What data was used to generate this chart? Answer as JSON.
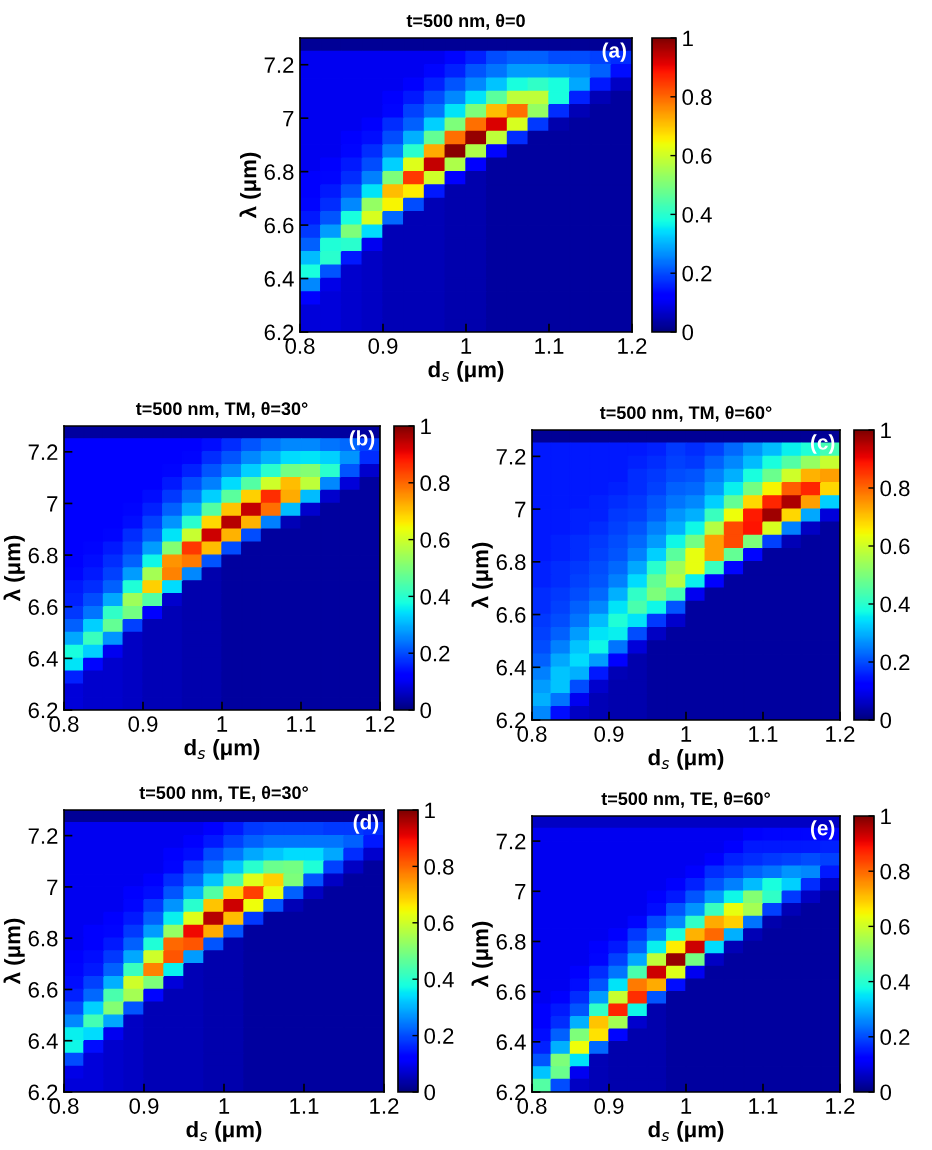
{
  "chart_data": [
    {
      "type": "heatmap",
      "title": "t=500 nm, θ=0",
      "xlabel": "d$_{s}$ (μm)",
      "ylabel": "λ (μm)",
      "annotations": [
        "(a)"
      ],
      "xlim": [
        0.8,
        1.2
      ],
      "ylim": [
        6.2,
        7.3
      ],
      "xticks": [
        0.8,
        0.9,
        1,
        1.1,
        1.2
      ],
      "yticks": [
        6.2,
        6.4,
        6.6,
        6.8,
        7,
        7.2
      ],
      "clim": [
        0,
        1
      ],
      "cticks": [
        0,
        0.2,
        0.4,
        0.6,
        0.8,
        1
      ],
      "cells": [
        [
          0.02,
          0.02,
          0.02,
          0.02,
          0.02,
          0.02,
          0.02,
          0.02,
          0.02,
          0.02,
          0.02,
          0.02,
          0.02,
          0.02,
          0.02,
          0.02
        ],
        [
          0.1,
          0.1,
          0.1,
          0.1,
          0.1,
          0.1,
          0.1,
          0.13,
          0.16,
          0.2,
          0.22,
          0.22,
          0.2,
          0.2,
          0.19,
          0.17
        ],
        [
          0.1,
          0.1,
          0.1,
          0.1,
          0.1,
          0.1,
          0.13,
          0.16,
          0.21,
          0.24,
          0.28,
          0.28,
          0.27,
          0.26,
          0.22,
          0.14
        ],
        [
          0.1,
          0.1,
          0.1,
          0.1,
          0.1,
          0.12,
          0.16,
          0.21,
          0.26,
          0.32,
          0.38,
          0.41,
          0.38,
          0.29,
          0.15,
          0.06
        ],
        [
          0.1,
          0.1,
          0.1,
          0.1,
          0.11,
          0.15,
          0.2,
          0.26,
          0.35,
          0.46,
          0.58,
          0.58,
          0.38,
          0.16,
          0.05,
          0.03
        ],
        [
          0.1,
          0.1,
          0.1,
          0.1,
          0.13,
          0.19,
          0.24,
          0.35,
          0.5,
          0.71,
          0.79,
          0.53,
          0.17,
          0.05,
          0.03,
          0.03
        ],
        [
          0.1,
          0.1,
          0.1,
          0.12,
          0.17,
          0.22,
          0.33,
          0.5,
          0.79,
          0.92,
          0.61,
          0.18,
          0.04,
          0.03,
          0.03,
          0.03
        ],
        [
          0.1,
          0.1,
          0.11,
          0.14,
          0.2,
          0.3,
          0.47,
          0.79,
          0.98,
          0.58,
          0.17,
          0.03,
          0.03,
          0.03,
          0.03,
          0.03
        ],
        [
          0.1,
          0.1,
          0.13,
          0.17,
          0.25,
          0.4,
          0.73,
          0.99,
          0.56,
          0.13,
          0.03,
          0.03,
          0.03,
          0.03,
          0.03,
          0.03
        ],
        [
          0.1,
          0.11,
          0.15,
          0.2,
          0.33,
          0.62,
          0.94,
          0.56,
          0.12,
          0.03,
          0.03,
          0.03,
          0.03,
          0.03,
          0.03,
          0.03
        ],
        [
          0.11,
          0.13,
          0.17,
          0.25,
          0.5,
          0.85,
          0.6,
          0.12,
          0.04,
          0.03,
          0.03,
          0.03,
          0.03,
          0.03,
          0.03,
          0.03
        ],
        [
          0.12,
          0.15,
          0.21,
          0.35,
          0.71,
          0.66,
          0.15,
          0.04,
          0.04,
          0.03,
          0.03,
          0.03,
          0.03,
          0.03,
          0.03,
          0.03
        ],
        [
          0.13,
          0.17,
          0.26,
          0.53,
          0.65,
          0.2,
          0.05,
          0.04,
          0.04,
          0.03,
          0.03,
          0.03,
          0.03,
          0.03,
          0.03,
          0.03
        ],
        [
          0.15,
          0.21,
          0.38,
          0.61,
          0.23,
          0.05,
          0.05,
          0.04,
          0.04,
          0.03,
          0.03,
          0.03,
          0.03,
          0.03,
          0.03,
          0.03
        ],
        [
          0.18,
          0.28,
          0.5,
          0.34,
          0.05,
          0.05,
          0.05,
          0.04,
          0.04,
          0.03,
          0.03,
          0.03,
          0.03,
          0.03,
          0.03,
          0.03
        ],
        [
          0.22,
          0.39,
          0.4,
          0.1,
          0.05,
          0.05,
          0.05,
          0.04,
          0.04,
          0.03,
          0.03,
          0.03,
          0.03,
          0.03,
          0.03,
          0.03
        ],
        [
          0.31,
          0.4,
          0.15,
          0.06,
          0.05,
          0.05,
          0.05,
          0.04,
          0.04,
          0.03,
          0.03,
          0.03,
          0.03,
          0.03,
          0.03,
          0.03
        ],
        [
          0.38,
          0.21,
          0.07,
          0.06,
          0.05,
          0.05,
          0.05,
          0.04,
          0.04,
          0.03,
          0.03,
          0.03,
          0.03,
          0.03,
          0.03,
          0.03
        ],
        [
          0.26,
          0.09,
          0.07,
          0.06,
          0.05,
          0.05,
          0.05,
          0.04,
          0.04,
          0.03,
          0.03,
          0.03,
          0.03,
          0.03,
          0.03,
          0.03
        ],
        [
          0.11,
          0.08,
          0.07,
          0.06,
          0.05,
          0.05,
          0.05,
          0.04,
          0.04,
          0.03,
          0.03,
          0.03,
          0.03,
          0.03,
          0.03,
          0.03
        ],
        [
          0.08,
          0.08,
          0.07,
          0.06,
          0.05,
          0.05,
          0.05,
          0.04,
          0.04,
          0.03,
          0.03,
          0.03,
          0.03,
          0.03,
          0.03,
          0.03
        ],
        [
          0.08,
          0.08,
          0.07,
          0.06,
          0.05,
          0.05,
          0.05,
          0.04,
          0.04,
          0.03,
          0.03,
          0.03,
          0.03,
          0.03,
          0.03,
          0.03
        ]
      ]
    },
    {
      "type": "heatmap",
      "title": "t=500 nm, TM, θ=30°",
      "xlabel": "d$_{s}$ (μm)",
      "ylabel": "λ (μm)",
      "annotations": [
        "(b)"
      ],
      "xlim": [
        0.8,
        1.2
      ],
      "ylim": [
        6.2,
        7.3
      ],
      "xticks": [
        0.8,
        0.9,
        1,
        1.1,
        1.2
      ],
      "yticks": [
        6.2,
        6.4,
        6.6,
        6.8,
        7,
        7.2
      ],
      "clim": [
        0,
        1
      ],
      "cticks": [
        0,
        0.2,
        0.4,
        0.6,
        0.8,
        1
      ],
      "cells": [
        [
          0.03,
          0.03,
          0.03,
          0.03,
          0.03,
          0.03,
          0.03,
          0.03,
          0.03,
          0.03,
          0.03,
          0.03,
          0.03,
          0.03,
          0.03,
          0.03
        ],
        [
          0.12,
          0.12,
          0.12,
          0.12,
          0.12,
          0.12,
          0.12,
          0.14,
          0.17,
          0.21,
          0.24,
          0.26,
          0.26,
          0.24,
          0.23,
          0.19
        ],
        [
          0.12,
          0.12,
          0.12,
          0.12,
          0.12,
          0.12,
          0.13,
          0.17,
          0.21,
          0.26,
          0.3,
          0.34,
          0.35,
          0.33,
          0.27,
          0.17
        ],
        [
          0.12,
          0.12,
          0.12,
          0.12,
          0.12,
          0.13,
          0.16,
          0.21,
          0.26,
          0.33,
          0.4,
          0.49,
          0.51,
          0.4,
          0.21,
          0.07
        ],
        [
          0.12,
          0.12,
          0.12,
          0.12,
          0.12,
          0.15,
          0.2,
          0.25,
          0.34,
          0.45,
          0.6,
          0.71,
          0.58,
          0.26,
          0.08,
          0.03
        ],
        [
          0.12,
          0.12,
          0.12,
          0.12,
          0.14,
          0.18,
          0.24,
          0.33,
          0.46,
          0.69,
          0.86,
          0.73,
          0.31,
          0.07,
          0.03,
          0.03
        ],
        [
          0.12,
          0.12,
          0.12,
          0.13,
          0.16,
          0.22,
          0.3,
          0.45,
          0.7,
          0.94,
          0.79,
          0.31,
          0.07,
          0.03,
          0.03,
          0.03
        ],
        [
          0.12,
          0.12,
          0.12,
          0.14,
          0.19,
          0.27,
          0.4,
          0.68,
          0.95,
          0.72,
          0.25,
          0.05,
          0.03,
          0.03,
          0.03,
          0.03
        ],
        [
          0.12,
          0.12,
          0.13,
          0.17,
          0.22,
          0.35,
          0.59,
          0.93,
          0.72,
          0.2,
          0.03,
          0.03,
          0.03,
          0.03,
          0.03,
          0.03
        ],
        [
          0.12,
          0.13,
          0.15,
          0.19,
          0.28,
          0.51,
          0.85,
          0.71,
          0.2,
          0.03,
          0.03,
          0.03,
          0.03,
          0.03,
          0.03,
          0.03
        ],
        [
          0.12,
          0.14,
          0.17,
          0.22,
          0.37,
          0.75,
          0.78,
          0.21,
          0.03,
          0.03,
          0.03,
          0.03,
          0.03,
          0.03,
          0.03,
          0.03
        ],
        [
          0.13,
          0.15,
          0.19,
          0.28,
          0.55,
          0.77,
          0.26,
          0.04,
          0.03,
          0.03,
          0.03,
          0.03,
          0.03,
          0.03,
          0.03,
          0.03
        ],
        [
          0.15,
          0.17,
          0.22,
          0.39,
          0.69,
          0.34,
          0.04,
          0.04,
          0.03,
          0.03,
          0.03,
          0.03,
          0.03,
          0.03,
          0.03,
          0.03
        ],
        [
          0.16,
          0.2,
          0.29,
          0.54,
          0.45,
          0.07,
          0.04,
          0.04,
          0.03,
          0.03,
          0.03,
          0.03,
          0.03,
          0.03,
          0.03,
          0.03
        ],
        [
          0.18,
          0.24,
          0.41,
          0.49,
          0.12,
          0.05,
          0.04,
          0.04,
          0.03,
          0.03,
          0.03,
          0.03,
          0.03,
          0.03,
          0.03,
          0.03
        ],
        [
          0.22,
          0.33,
          0.47,
          0.19,
          0.05,
          0.05,
          0.04,
          0.04,
          0.03,
          0.03,
          0.03,
          0.03,
          0.03,
          0.03,
          0.03,
          0.03
        ],
        [
          0.29,
          0.42,
          0.27,
          0.06,
          0.05,
          0.05,
          0.04,
          0.04,
          0.03,
          0.03,
          0.03,
          0.03,
          0.03,
          0.03,
          0.03,
          0.03
        ],
        [
          0.38,
          0.33,
          0.1,
          0.06,
          0.05,
          0.05,
          0.04,
          0.04,
          0.03,
          0.03,
          0.03,
          0.03,
          0.03,
          0.03,
          0.03,
          0.03
        ],
        [
          0.35,
          0.13,
          0.07,
          0.06,
          0.05,
          0.05,
          0.04,
          0.04,
          0.03,
          0.03,
          0.03,
          0.03,
          0.03,
          0.03,
          0.03,
          0.03
        ],
        [
          0.16,
          0.07,
          0.07,
          0.06,
          0.05,
          0.05,
          0.04,
          0.04,
          0.03,
          0.03,
          0.03,
          0.03,
          0.03,
          0.03,
          0.03,
          0.03
        ],
        [
          0.08,
          0.07,
          0.07,
          0.06,
          0.05,
          0.05,
          0.04,
          0.04,
          0.03,
          0.03,
          0.03,
          0.03,
          0.03,
          0.03,
          0.03,
          0.03
        ],
        [
          0.08,
          0.07,
          0.07,
          0.06,
          0.05,
          0.05,
          0.04,
          0.04,
          0.03,
          0.03,
          0.03,
          0.03,
          0.03,
          0.03,
          0.03,
          0.03
        ]
      ]
    },
    {
      "type": "heatmap",
      "title": "t=500 nm, TM, θ=60°",
      "xlabel": "d$_{s}$ (μm)",
      "ylabel": "λ (μm)",
      "annotations": [
        "(c)"
      ],
      "xlim": [
        0.8,
        1.2
      ],
      "ylim": [
        6.2,
        7.3
      ],
      "xticks": [
        0.8,
        0.9,
        1,
        1.1,
        1.2
      ],
      "yticks": [
        6.2,
        6.4,
        6.6,
        6.8,
        7,
        7.2
      ],
      "clim": [
        0,
        1
      ],
      "cticks": [
        0,
        0.2,
        0.4,
        0.6,
        0.8,
        1
      ],
      "cells": [
        [
          0.02,
          0.02,
          0.02,
          0.02,
          0.02,
          0.02,
          0.02,
          0.02,
          0.02,
          0.02,
          0.02,
          0.02,
          0.02,
          0.02,
          0.02,
          0.02
        ],
        [
          0.15,
          0.15,
          0.15,
          0.15,
          0.15,
          0.15,
          0.16,
          0.18,
          0.17,
          0.19,
          0.23,
          0.27,
          0.31,
          0.36,
          0.39,
          0.43
        ],
        [
          0.15,
          0.15,
          0.15,
          0.15,
          0.15,
          0.16,
          0.17,
          0.19,
          0.18,
          0.22,
          0.26,
          0.31,
          0.38,
          0.45,
          0.53,
          0.59
        ],
        [
          0.15,
          0.15,
          0.15,
          0.15,
          0.15,
          0.17,
          0.18,
          0.2,
          0.21,
          0.25,
          0.3,
          0.38,
          0.48,
          0.6,
          0.72,
          0.74
        ],
        [
          0.15,
          0.15,
          0.15,
          0.15,
          0.16,
          0.17,
          0.19,
          0.22,
          0.23,
          0.28,
          0.36,
          0.49,
          0.65,
          0.81,
          0.87,
          0.68
        ],
        [
          0.15,
          0.15,
          0.15,
          0.16,
          0.17,
          0.18,
          0.21,
          0.24,
          0.26,
          0.33,
          0.47,
          0.68,
          0.87,
          0.96,
          0.74,
          0.33
        ],
        [
          0.15,
          0.15,
          0.16,
          0.16,
          0.18,
          0.19,
          0.22,
          0.27,
          0.3,
          0.42,
          0.64,
          0.88,
          0.97,
          0.68,
          0.29,
          0.08
        ],
        [
          0.15,
          0.15,
          0.16,
          0.17,
          0.19,
          0.21,
          0.25,
          0.3,
          0.37,
          0.57,
          0.83,
          0.89,
          0.61,
          0.25,
          0.06,
          0.03
        ],
        [
          0.15,
          0.16,
          0.17,
          0.18,
          0.2,
          0.23,
          0.28,
          0.37,
          0.49,
          0.74,
          0.83,
          0.5,
          0.19,
          0.05,
          0.03,
          0.03
        ],
        [
          0.15,
          0.16,
          0.17,
          0.19,
          0.21,
          0.25,
          0.33,
          0.46,
          0.63,
          0.74,
          0.47,
          0.13,
          0.03,
          0.03,
          0.03,
          0.03
        ],
        [
          0.16,
          0.17,
          0.18,
          0.2,
          0.23,
          0.29,
          0.4,
          0.54,
          0.63,
          0.42,
          0.13,
          0.03,
          0.03,
          0.03,
          0.03,
          0.03
        ],
        [
          0.16,
          0.17,
          0.19,
          0.21,
          0.25,
          0.34,
          0.47,
          0.57,
          0.36,
          0.11,
          0.03,
          0.03,
          0.03,
          0.03,
          0.03,
          0.03
        ],
        [
          0.17,
          0.18,
          0.2,
          0.23,
          0.3,
          0.41,
          0.5,
          0.43,
          0.1,
          0.03,
          0.03,
          0.03,
          0.03,
          0.03,
          0.03,
          0.03
        ],
        [
          0.17,
          0.19,
          0.22,
          0.26,
          0.35,
          0.44,
          0.37,
          0.21,
          0.03,
          0.03,
          0.03,
          0.03,
          0.03,
          0.03,
          0.03,
          0.03
        ],
        [
          0.18,
          0.2,
          0.24,
          0.31,
          0.39,
          0.35,
          0.18,
          0.07,
          0.03,
          0.03,
          0.03,
          0.03,
          0.03,
          0.03,
          0.03,
          0.03
        ],
        [
          0.19,
          0.22,
          0.28,
          0.35,
          0.36,
          0.2,
          0.06,
          0.03,
          0.03,
          0.03,
          0.03,
          0.03,
          0.03,
          0.03,
          0.03,
          0.03
        ],
        [
          0.2,
          0.25,
          0.32,
          0.37,
          0.24,
          0.08,
          0.03,
          0.03,
          0.03,
          0.03,
          0.03,
          0.03,
          0.03,
          0.03,
          0.03,
          0.03
        ],
        [
          0.22,
          0.29,
          0.34,
          0.28,
          0.11,
          0.04,
          0.03,
          0.03,
          0.03,
          0.03,
          0.03,
          0.03,
          0.03,
          0.03,
          0.03,
          0.03
        ],
        [
          0.25,
          0.32,
          0.3,
          0.15,
          0.05,
          0.04,
          0.03,
          0.03,
          0.03,
          0.03,
          0.03,
          0.03,
          0.03,
          0.03,
          0.03,
          0.03
        ],
        [
          0.28,
          0.32,
          0.2,
          0.07,
          0.04,
          0.04,
          0.03,
          0.03,
          0.03,
          0.03,
          0.03,
          0.03,
          0.03,
          0.03,
          0.03,
          0.03
        ],
        [
          0.3,
          0.24,
          0.1,
          0.05,
          0.04,
          0.04,
          0.03,
          0.03,
          0.03,
          0.03,
          0.03,
          0.03,
          0.03,
          0.03,
          0.03,
          0.03
        ],
        [
          0.26,
          0.14,
          0.06,
          0.05,
          0.04,
          0.04,
          0.03,
          0.03,
          0.03,
          0.03,
          0.03,
          0.03,
          0.03,
          0.03,
          0.03,
          0.03
        ]
      ]
    },
    {
      "type": "heatmap",
      "title": "t=500 nm, TE, θ=30°",
      "xlabel": "d$_{s}$ (μm)",
      "ylabel": "λ (μm)",
      "annotations": [
        "(d)"
      ],
      "xlim": [
        0.8,
        1.2
      ],
      "ylim": [
        6.2,
        7.3
      ],
      "xticks": [
        0.8,
        0.9,
        1,
        1.1,
        1.2
      ],
      "yticks": [
        6.2,
        6.4,
        6.6,
        6.8,
        7,
        7.2
      ],
      "clim": [
        0,
        1
      ],
      "cticks": [
        0,
        0.2,
        0.4,
        0.6,
        0.8,
        1
      ],
      "cells": [
        [
          0.02,
          0.02,
          0.02,
          0.02,
          0.02,
          0.02,
          0.02,
          0.02,
          0.02,
          0.02,
          0.02,
          0.02,
          0.02,
          0.02,
          0.02,
          0.02
        ],
        [
          0.1,
          0.1,
          0.1,
          0.1,
          0.1,
          0.1,
          0.1,
          0.12,
          0.15,
          0.18,
          0.19,
          0.19,
          0.19,
          0.18,
          0.18,
          0.17
        ],
        [
          0.1,
          0.1,
          0.1,
          0.1,
          0.1,
          0.1,
          0.11,
          0.15,
          0.19,
          0.22,
          0.24,
          0.24,
          0.24,
          0.24,
          0.22,
          0.15
        ],
        [
          0.1,
          0.1,
          0.1,
          0.1,
          0.1,
          0.11,
          0.14,
          0.2,
          0.24,
          0.29,
          0.32,
          0.34,
          0.34,
          0.29,
          0.17,
          0.07
        ],
        [
          0.1,
          0.1,
          0.1,
          0.1,
          0.1,
          0.13,
          0.19,
          0.24,
          0.32,
          0.4,
          0.48,
          0.49,
          0.39,
          0.19,
          0.06,
          0.03
        ],
        [
          0.1,
          0.1,
          0.1,
          0.1,
          0.12,
          0.17,
          0.23,
          0.32,
          0.44,
          0.62,
          0.69,
          0.5,
          0.21,
          0.06,
          0.03,
          0.03
        ],
        [
          0.1,
          0.1,
          0.1,
          0.11,
          0.14,
          0.21,
          0.3,
          0.45,
          0.68,
          0.84,
          0.63,
          0.22,
          0.06,
          0.03,
          0.03,
          0.03
        ],
        [
          0.1,
          0.1,
          0.1,
          0.13,
          0.18,
          0.27,
          0.4,
          0.7,
          0.93,
          0.64,
          0.21,
          0.05,
          0.03,
          0.03,
          0.03,
          0.03
        ],
        [
          0.1,
          0.1,
          0.11,
          0.15,
          0.22,
          0.36,
          0.62,
          0.95,
          0.71,
          0.18,
          0.03,
          0.03,
          0.03,
          0.03,
          0.03,
          0.03
        ],
        [
          0.1,
          0.11,
          0.13,
          0.18,
          0.28,
          0.53,
          0.9,
          0.73,
          0.21,
          0.03,
          0.03,
          0.03,
          0.03,
          0.03,
          0.03,
          0.03
        ],
        [
          0.1,
          0.12,
          0.15,
          0.22,
          0.39,
          0.8,
          0.82,
          0.21,
          0.04,
          0.03,
          0.03,
          0.03,
          0.03,
          0.03,
          0.03,
          0.03
        ],
        [
          0.11,
          0.14,
          0.18,
          0.29,
          0.6,
          0.82,
          0.28,
          0.04,
          0.04,
          0.03,
          0.03,
          0.03,
          0.03,
          0.03,
          0.03,
          0.03
        ],
        [
          0.13,
          0.15,
          0.22,
          0.42,
          0.77,
          0.36,
          0.05,
          0.04,
          0.04,
          0.03,
          0.03,
          0.03,
          0.03,
          0.03,
          0.03,
          0.03
        ],
        [
          0.14,
          0.19,
          0.3,
          0.6,
          0.5,
          0.08,
          0.05,
          0.04,
          0.04,
          0.03,
          0.03,
          0.03,
          0.03,
          0.03,
          0.03,
          0.03
        ],
        [
          0.16,
          0.23,
          0.44,
          0.55,
          0.13,
          0.05,
          0.05,
          0.04,
          0.04,
          0.03,
          0.03,
          0.03,
          0.03,
          0.03,
          0.03,
          0.03
        ],
        [
          0.2,
          0.33,
          0.51,
          0.21,
          0.05,
          0.05,
          0.05,
          0.04,
          0.04,
          0.03,
          0.03,
          0.03,
          0.03,
          0.03,
          0.03,
          0.03
        ],
        [
          0.26,
          0.43,
          0.29,
          0.06,
          0.05,
          0.05,
          0.05,
          0.04,
          0.04,
          0.03,
          0.03,
          0.03,
          0.03,
          0.03,
          0.03,
          0.03
        ],
        [
          0.36,
          0.34,
          0.1,
          0.06,
          0.05,
          0.05,
          0.05,
          0.04,
          0.04,
          0.03,
          0.03,
          0.03,
          0.03,
          0.03,
          0.03,
          0.03
        ],
        [
          0.37,
          0.14,
          0.07,
          0.06,
          0.05,
          0.05,
          0.05,
          0.04,
          0.04,
          0.03,
          0.03,
          0.03,
          0.03,
          0.03,
          0.03,
          0.03
        ],
        [
          0.2,
          0.08,
          0.07,
          0.06,
          0.05,
          0.05,
          0.05,
          0.04,
          0.04,
          0.03,
          0.03,
          0.03,
          0.03,
          0.03,
          0.03,
          0.03
        ],
        [
          0.09,
          0.08,
          0.07,
          0.06,
          0.05,
          0.05,
          0.05,
          0.04,
          0.04,
          0.03,
          0.03,
          0.03,
          0.03,
          0.03,
          0.03,
          0.03
        ],
        [
          0.08,
          0.08,
          0.07,
          0.06,
          0.05,
          0.05,
          0.05,
          0.04,
          0.04,
          0.03,
          0.03,
          0.03,
          0.03,
          0.03,
          0.03,
          0.03
        ]
      ]
    },
    {
      "type": "heatmap",
      "title": "t=500 nm, TE, θ=60°",
      "xlabel": "d$_{s}$ (μm)",
      "ylabel": "λ (μm)",
      "annotations": [
        "(e)"
      ],
      "xlim": [
        0.8,
        1.2
      ],
      "ylim": [
        6.2,
        7.3
      ],
      "xticks": [
        0.8,
        0.9,
        1,
        1.1,
        1.2
      ],
      "yticks": [
        6.2,
        6.4,
        6.6,
        6.8,
        7,
        7.2
      ],
      "clim": [
        0,
        1
      ],
      "cticks": [
        0,
        0.2,
        0.4,
        0.6,
        0.8,
        1
      ],
      "cells": [
        [
          0.06,
          0.06,
          0.06,
          0.06,
          0.06,
          0.06,
          0.06,
          0.06,
          0.06,
          0.06,
          0.06,
          0.06,
          0.06,
          0.06,
          0.06,
          0.06
        ],
        [
          0.1,
          0.1,
          0.1,
          0.1,
          0.1,
          0.1,
          0.1,
          0.1,
          0.1,
          0.1,
          0.1,
          0.12,
          0.13,
          0.13,
          0.13,
          0.13
        ],
        [
          0.1,
          0.1,
          0.1,
          0.1,
          0.1,
          0.1,
          0.1,
          0.1,
          0.1,
          0.1,
          0.12,
          0.15,
          0.15,
          0.15,
          0.15,
          0.16
        ],
        [
          0.1,
          0.1,
          0.1,
          0.1,
          0.1,
          0.1,
          0.1,
          0.1,
          0.1,
          0.12,
          0.16,
          0.17,
          0.18,
          0.19,
          0.2,
          0.19
        ],
        [
          0.1,
          0.1,
          0.1,
          0.1,
          0.1,
          0.1,
          0.1,
          0.1,
          0.12,
          0.17,
          0.19,
          0.22,
          0.24,
          0.27,
          0.26,
          0.15
        ],
        [
          0.1,
          0.1,
          0.1,
          0.1,
          0.1,
          0.1,
          0.1,
          0.12,
          0.16,
          0.21,
          0.25,
          0.31,
          0.38,
          0.33,
          0.17,
          0.06
        ],
        [
          0.1,
          0.1,
          0.1,
          0.1,
          0.1,
          0.1,
          0.11,
          0.15,
          0.21,
          0.28,
          0.37,
          0.51,
          0.41,
          0.18,
          0.06,
          0.03
        ],
        [
          0.1,
          0.1,
          0.1,
          0.1,
          0.1,
          0.1,
          0.14,
          0.21,
          0.27,
          0.42,
          0.63,
          0.55,
          0.19,
          0.05,
          0.03,
          0.03
        ],
        [
          0.1,
          0.1,
          0.1,
          0.1,
          0.1,
          0.13,
          0.2,
          0.26,
          0.41,
          0.73,
          0.69,
          0.24,
          0.04,
          0.03,
          0.03,
          0.03
        ],
        [
          0.1,
          0.1,
          0.1,
          0.1,
          0.12,
          0.18,
          0.25,
          0.38,
          0.72,
          0.8,
          0.3,
          0.05,
          0.03,
          0.03,
          0.03,
          0.03
        ],
        [
          0.1,
          0.1,
          0.1,
          0.11,
          0.15,
          0.22,
          0.36,
          0.66,
          0.93,
          0.34,
          0.05,
          0.03,
          0.03,
          0.03,
          0.03,
          0.03
        ],
        [
          0.1,
          0.1,
          0.1,
          0.13,
          0.19,
          0.29,
          0.58,
          0.98,
          0.49,
          0.06,
          0.03,
          0.03,
          0.03,
          0.03,
          0.03,
          0.03
        ],
        [
          0.1,
          0.1,
          0.11,
          0.17,
          0.24,
          0.44,
          0.93,
          0.62,
          0.1,
          0.03,
          0.03,
          0.03,
          0.03,
          0.03,
          0.03,
          0.03
        ],
        [
          0.1,
          0.1,
          0.14,
          0.21,
          0.35,
          0.78,
          0.73,
          0.14,
          0.03,
          0.03,
          0.03,
          0.03,
          0.03,
          0.03,
          0.03,
          0.03
        ],
        [
          0.1,
          0.12,
          0.17,
          0.28,
          0.59,
          0.86,
          0.21,
          0.03,
          0.03,
          0.03,
          0.03,
          0.03,
          0.03,
          0.03,
          0.03,
          0.03
        ],
        [
          0.11,
          0.15,
          0.21,
          0.41,
          0.87,
          0.37,
          0.04,
          0.03,
          0.03,
          0.03,
          0.03,
          0.03,
          0.03,
          0.03,
          0.03,
          0.03
        ],
        [
          0.12,
          0.17,
          0.3,
          0.7,
          0.55,
          0.07,
          0.04,
          0.03,
          0.03,
          0.03,
          0.03,
          0.03,
          0.03,
          0.03,
          0.03,
          0.03
        ],
        [
          0.14,
          0.22,
          0.5,
          0.67,
          0.13,
          0.04,
          0.04,
          0.03,
          0.03,
          0.03,
          0.03,
          0.03,
          0.03,
          0.03,
          0.03,
          0.03
        ],
        [
          0.16,
          0.3,
          0.64,
          0.23,
          0.04,
          0.04,
          0.04,
          0.03,
          0.03,
          0.03,
          0.03,
          0.03,
          0.03,
          0.03,
          0.03,
          0.03
        ],
        [
          0.21,
          0.5,
          0.35,
          0.05,
          0.04,
          0.04,
          0.04,
          0.03,
          0.03,
          0.03,
          0.03,
          0.03,
          0.03,
          0.03,
          0.03,
          0.03
        ],
        [
          0.32,
          0.48,
          0.1,
          0.05,
          0.04,
          0.04,
          0.04,
          0.03,
          0.03,
          0.03,
          0.03,
          0.03,
          0.03,
          0.03,
          0.03,
          0.03
        ],
        [
          0.45,
          0.2,
          0.06,
          0.05,
          0.04,
          0.04,
          0.04,
          0.03,
          0.03,
          0.03,
          0.03,
          0.03,
          0.03,
          0.03,
          0.03,
          0.03
        ]
      ]
    }
  ]
}
